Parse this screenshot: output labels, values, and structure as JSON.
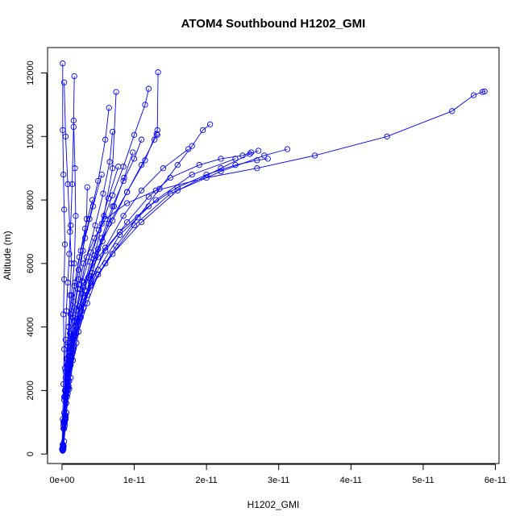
{
  "chart_data": {
    "type": "line",
    "title": "ATOM4 Southbound H1202_GMI",
    "xlabel": "H1202_GMI",
    "ylabel": "Altitude (m)",
    "xlim": [
      -2e-12,
      6.05e-11
    ],
    "ylim": [
      -300,
      12800
    ],
    "x_ticks": [
      0,
      1e-11,
      2e-11,
      3e-11,
      4e-11,
      5e-11,
      6e-11
    ],
    "x_tick_labels": [
      "0e+00",
      "1e-11",
      "2e-11",
      "3e-11",
      "4e-11",
      "5e-11",
      "6e-11"
    ],
    "y_ticks": [
      0,
      2000,
      4000,
      6000,
      8000,
      10000,
      12000
    ],
    "y_tick_labels": [
      "0",
      "2000",
      "4000",
      "6000",
      "8000",
      "10000",
      "12000"
    ],
    "grid": false,
    "legend": "none",
    "marker": "open-circle",
    "color": "#0000ff",
    "series": [
      {
        "x": [
          1e-13,
          3e-13,
          6e-13,
          8e-13,
          1.2e-12,
          1.5e-12,
          2.2e-12,
          3e-12,
          4.5e-12,
          6e-12,
          9e-12,
          1.3e-11,
          2e-11,
          2.7e-11,
          3.5e-11,
          4.5e-11,
          5.4e-11,
          5.7e-11,
          5.82e-11,
          5.85e-11
        ],
        "y": [
          200,
          800,
          1600,
          2500,
          3400,
          4300,
          5200,
          6000,
          6800,
          7400,
          7900,
          8300,
          8700,
          9000,
          9400,
          10000,
          10800,
          11300,
          11400,
          11420
        ]
      },
      {
        "x": [
          2e-13,
          4e-13,
          7e-13,
          1e-12,
          1.4e-12,
          2e-12,
          3e-12,
          5e-12,
          8e-12,
          1.2e-11,
          1.6e-11,
          2e-11,
          2.4e-11,
          2.7e-11,
          2.85e-11
        ],
        "y": [
          150,
          900,
          1800,
          2700,
          3600,
          4500,
          5400,
          6200,
          7000,
          7800,
          8400,
          8800,
          9100,
          9250,
          9300
        ]
      },
      {
        "x": [
          1e-13,
          5e-13,
          9e-13,
          1.3e-12,
          2e-12,
          3.5e-12,
          6e-12,
          1e-11,
          1.5e-11,
          2.2e-11,
          2.8e-11,
          3.12e-11
        ],
        "y": [
          300,
          1200,
          2100,
          3000,
          4000,
          5000,
          6000,
          7200,
          8200,
          8900,
          9400,
          9600
        ]
      },
      {
        "x": [
          3e-13,
          6e-13,
          1e-12,
          1.6e-12,
          2.5e-12,
          4e-12,
          7e-12,
          1.1e-11,
          1.6e-11,
          2.2e-11,
          2.6e-11,
          2.72e-11
        ],
        "y": [
          400,
          1300,
          2300,
          3300,
          4300,
          5300,
          6300,
          7300,
          8300,
          9000,
          9450,
          9550
        ]
      },
      {
        "x": [
          2e-13,
          5e-13,
          8e-13,
          1.2e-12,
          2e-12,
          3e-12,
          5e-12,
          8e-12,
          1.3e-11,
          1.8e-11,
          2.4e-11
        ],
        "y": [
          250,
          1100,
          2000,
          2900,
          3800,
          4800,
          5800,
          6900,
          8000,
          8800,
          9300
        ]
      },
      {
        "x": [
          1e-13,
          4e-13,
          8e-13,
          1.2e-12,
          1.8e-12,
          2.6e-12,
          4e-12,
          6e-12,
          9e-12,
          1.2e-11,
          1.5e-11,
          1.9e-11,
          2.2e-11,
          2.5e-11,
          2.62e-11
        ],
        "y": [
          180,
          1000,
          1900,
          2800,
          3700,
          4600,
          5500,
          6400,
          7300,
          8100,
          8700,
          9100,
          9300,
          9400,
          9500
        ]
      },
      {
        "x": [
          2e-13,
          5e-13,
          1e-12,
          1.5e-12,
          2.3e-12,
          3.5e-12,
          5e-12,
          7.5e-12,
          1.05e-11,
          1.35e-11,
          1.6e-11,
          1.8e-11,
          1.95e-11,
          2.05e-11
        ],
        "y": [
          220,
          1150,
          2050,
          2950,
          3850,
          4750,
          5650,
          6550,
          7450,
          8350,
          9100,
          9700,
          10200,
          10380
        ]
      },
      {
        "x": [
          1e-13,
          3e-13,
          6e-13,
          1e-12,
          1.6e-12,
          2.4e-12,
          3.6e-12,
          5e-12,
          7e-12,
          9e-12,
          1.1e-11,
          1.28e-11,
          1.32e-11,
          1.31e-11
        ],
        "y": [
          170,
          1050,
          1950,
          2850,
          3750,
          4650,
          5550,
          6450,
          7350,
          8250,
          9100,
          9900,
          10050,
          10080
        ]
      },
      {
        "x": [
          2e-13,
          4e-13,
          8e-13,
          1.3e-12,
          2e-12,
          3e-12,
          4.5e-12,
          6.5e-12,
          9e-12,
          1.15e-11,
          1.32e-11,
          1.33e-11
        ],
        "y": [
          260,
          1250,
          2250,
          3250,
          4250,
          5250,
          6250,
          7250,
          8250,
          9250,
          10200,
          12020
        ]
      },
      {
        "x": [
          1e-13,
          3e-13,
          6e-13,
          9e-13,
          1.4e-12,
          2e-12,
          2.8e-12,
          4e-12,
          5.5e-12,
          7e-12,
          8.5e-12,
          1e-11,
          1.15e-11,
          1.2e-11
        ],
        "y": [
          130,
          950,
          1850,
          2750,
          3650,
          4550,
          5450,
          6350,
          7250,
          8150,
          9050,
          10050,
          11000,
          11500
        ]
      },
      {
        "x": [
          2e-13,
          5e-13,
          9e-13,
          1.4e-12,
          2.1e-12,
          3.1e-12,
          4.4e-12,
          5.8e-12,
          7e-12,
          7.5e-12
        ],
        "y": [
          240,
          1150,
          2150,
          3150,
          4150,
          5150,
          6150,
          7500,
          9000,
          11400
        ]
      },
      {
        "x": [
          1e-13,
          3e-13,
          5e-13,
          8e-13,
          1.2e-12,
          1.8e-12,
          2.6e-12,
          3.8e-12,
          5e-12,
          6e-12,
          6.5e-12
        ],
        "y": [
          300,
          1300,
          2400,
          3400,
          4400,
          5400,
          6400,
          7400,
          8600,
          9900,
          10900
        ]
      },
      {
        "x": [
          1e-13,
          2e-13,
          4e-13,
          6e-13,
          9e-13,
          1.3e-12,
          1.7e-12,
          1.9e-12,
          1.8e-12,
          1.6e-12,
          1.7e-12
        ],
        "y": [
          150,
          1000,
          2000,
          3000,
          4000,
          5000,
          6000,
          7500,
          9000,
          10500,
          11900
        ]
      },
      {
        "x": [
          1e-13,
          2e-13,
          3e-13,
          4e-13,
          5e-13,
          6e-13,
          8e-13,
          1e-12,
          1.2e-12,
          1.4e-12,
          1.6e-12
        ],
        "y": [
          100,
          900,
          1800,
          2700,
          3600,
          4500,
          5400,
          6300,
          7200,
          8500,
          10300
        ]
      },
      {
        "x": [
          0,
          1e-13,
          2e-13,
          3e-13,
          2e-13,
          3e-13,
          4e-13,
          3e-13,
          2e-13,
          1e-13,
          1e-13
        ],
        "y": [
          150,
          1100,
          2200,
          3300,
          4400,
          5500,
          6600,
          7700,
          8800,
          10200,
          12300
        ]
      },
      {
        "x": [
          1e-13,
          3e-13,
          5e-13,
          7e-13,
          9e-13,
          1.1e-12,
          1.3e-12,
          1.1e-12,
          8e-13,
          5e-13,
          3e-13
        ],
        "y": [
          200,
          1000,
          2000,
          3000,
          4000,
          5000,
          6000,
          7000,
          8500,
          10000,
          11700
        ]
      },
      {
        "x": [
          2e-13,
          6e-13,
          1.2e-12,
          2e-12,
          3e-12,
          4.2e-12,
          5.5e-12,
          7e-12,
          8.5e-12,
          1e-11,
          1.1e-11
        ],
        "y": [
          280,
          1300,
          2400,
          3500,
          4600,
          5700,
          6800,
          7800,
          8600,
          9300,
          9900
        ]
      },
      {
        "x": [
          1e-13,
          4e-13,
          8e-13,
          1.5e-12,
          2.6e-12,
          4e-12,
          6e-12,
          8.5e-12,
          1.1e-11,
          1.4e-11,
          1.75e-11
        ],
        "y": [
          160,
          1100,
          2100,
          3200,
          4300,
          5400,
          6500,
          7500,
          8300,
          9000,
          9600
        ]
      },
      {
        "x": [
          2e-13,
          5e-13,
          1e-12,
          1.7e-12,
          2.7e-12,
          4e-12,
          5.6e-12,
          7.2e-12,
          8.6e-12,
          9.8e-12
        ],
        "y": [
          230,
          1200,
          2300,
          3400,
          4500,
          5600,
          6700,
          7800,
          8700,
          9500
        ]
      },
      {
        "x": [
          1e-13,
          3e-13,
          7e-13,
          1.2e-12,
          1.9e-12,
          2.8e-12,
          3.9e-12,
          5.1e-12,
          6.4e-12,
          7.8e-12
        ],
        "y": [
          190,
          1050,
          2050,
          3050,
          4050,
          5050,
          6050,
          7050,
          8050,
          9050
        ]
      },
      {
        "x": [
          1e-13,
          2e-13,
          4e-13,
          7e-13,
          1.1e-12,
          1.6e-12,
          2.3e-12,
          3.2e-12,
          4.3e-12,
          5.5e-12
        ],
        "y": [
          120,
          900,
          1800,
          2800,
          3800,
          4800,
          5800,
          6800,
          7800,
          8800
        ]
      },
      {
        "x": [
          1e-13,
          2e-13,
          3e-13,
          5e-13,
          8e-13,
          1.2e-12,
          1.7e-12,
          2.4e-12,
          3.2e-12,
          4.2e-12
        ],
        "y": [
          140,
          800,
          1700,
          2600,
          3500,
          4400,
          5300,
          6200,
          7100,
          8000
        ]
      },
      {
        "x": [
          2e-13,
          4e-13,
          7e-13,
          1.1e-12,
          1.7e-12,
          2.5e-12,
          3.4e-12,
          4.6e-12,
          5.7e-12,
          6.6e-12,
          7e-12
        ],
        "y": [
          260,
          1200,
          2200,
          3200,
          4200,
          5200,
          6200,
          7200,
          8200,
          9200,
          10150
        ]
      },
      {
        "x": [
          1e-13,
          3e-13,
          5e-13,
          8e-13,
          1.2e-12,
          1.7e-12,
          2.3e-12,
          2.9e-12,
          3.4e-12,
          3.5e-12
        ],
        "y": [
          170,
          1000,
          1900,
          2800,
          3700,
          4600,
          5500,
          6400,
          7400,
          8400
        ]
      }
    ]
  }
}
